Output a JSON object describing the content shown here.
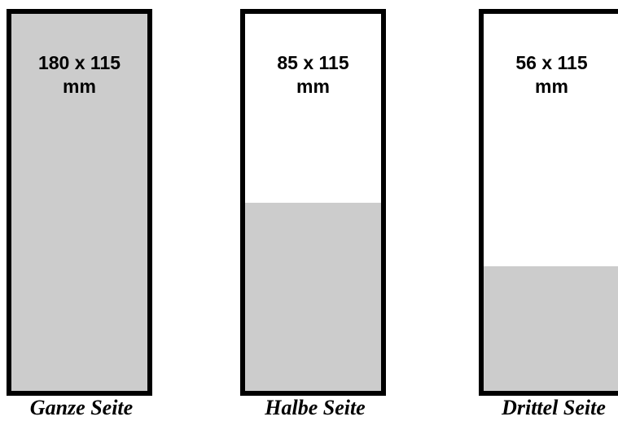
{
  "colors": {
    "border": "#000000",
    "fill": "#cccccc",
    "background": "#ffffff"
  },
  "panels": [
    {
      "size_line1": "180 x 115",
      "size_line2": "mm",
      "caption": "Ganze Seite",
      "filled_fraction": 1.0
    },
    {
      "size_line1": "85 x 115",
      "size_line2": "mm",
      "caption": "Halbe Seite",
      "filled_fraction": 0.5
    },
    {
      "size_line1": "56 x 115",
      "size_line2": "mm",
      "caption": "Drittel Seite",
      "filled_fraction": 0.33
    }
  ]
}
